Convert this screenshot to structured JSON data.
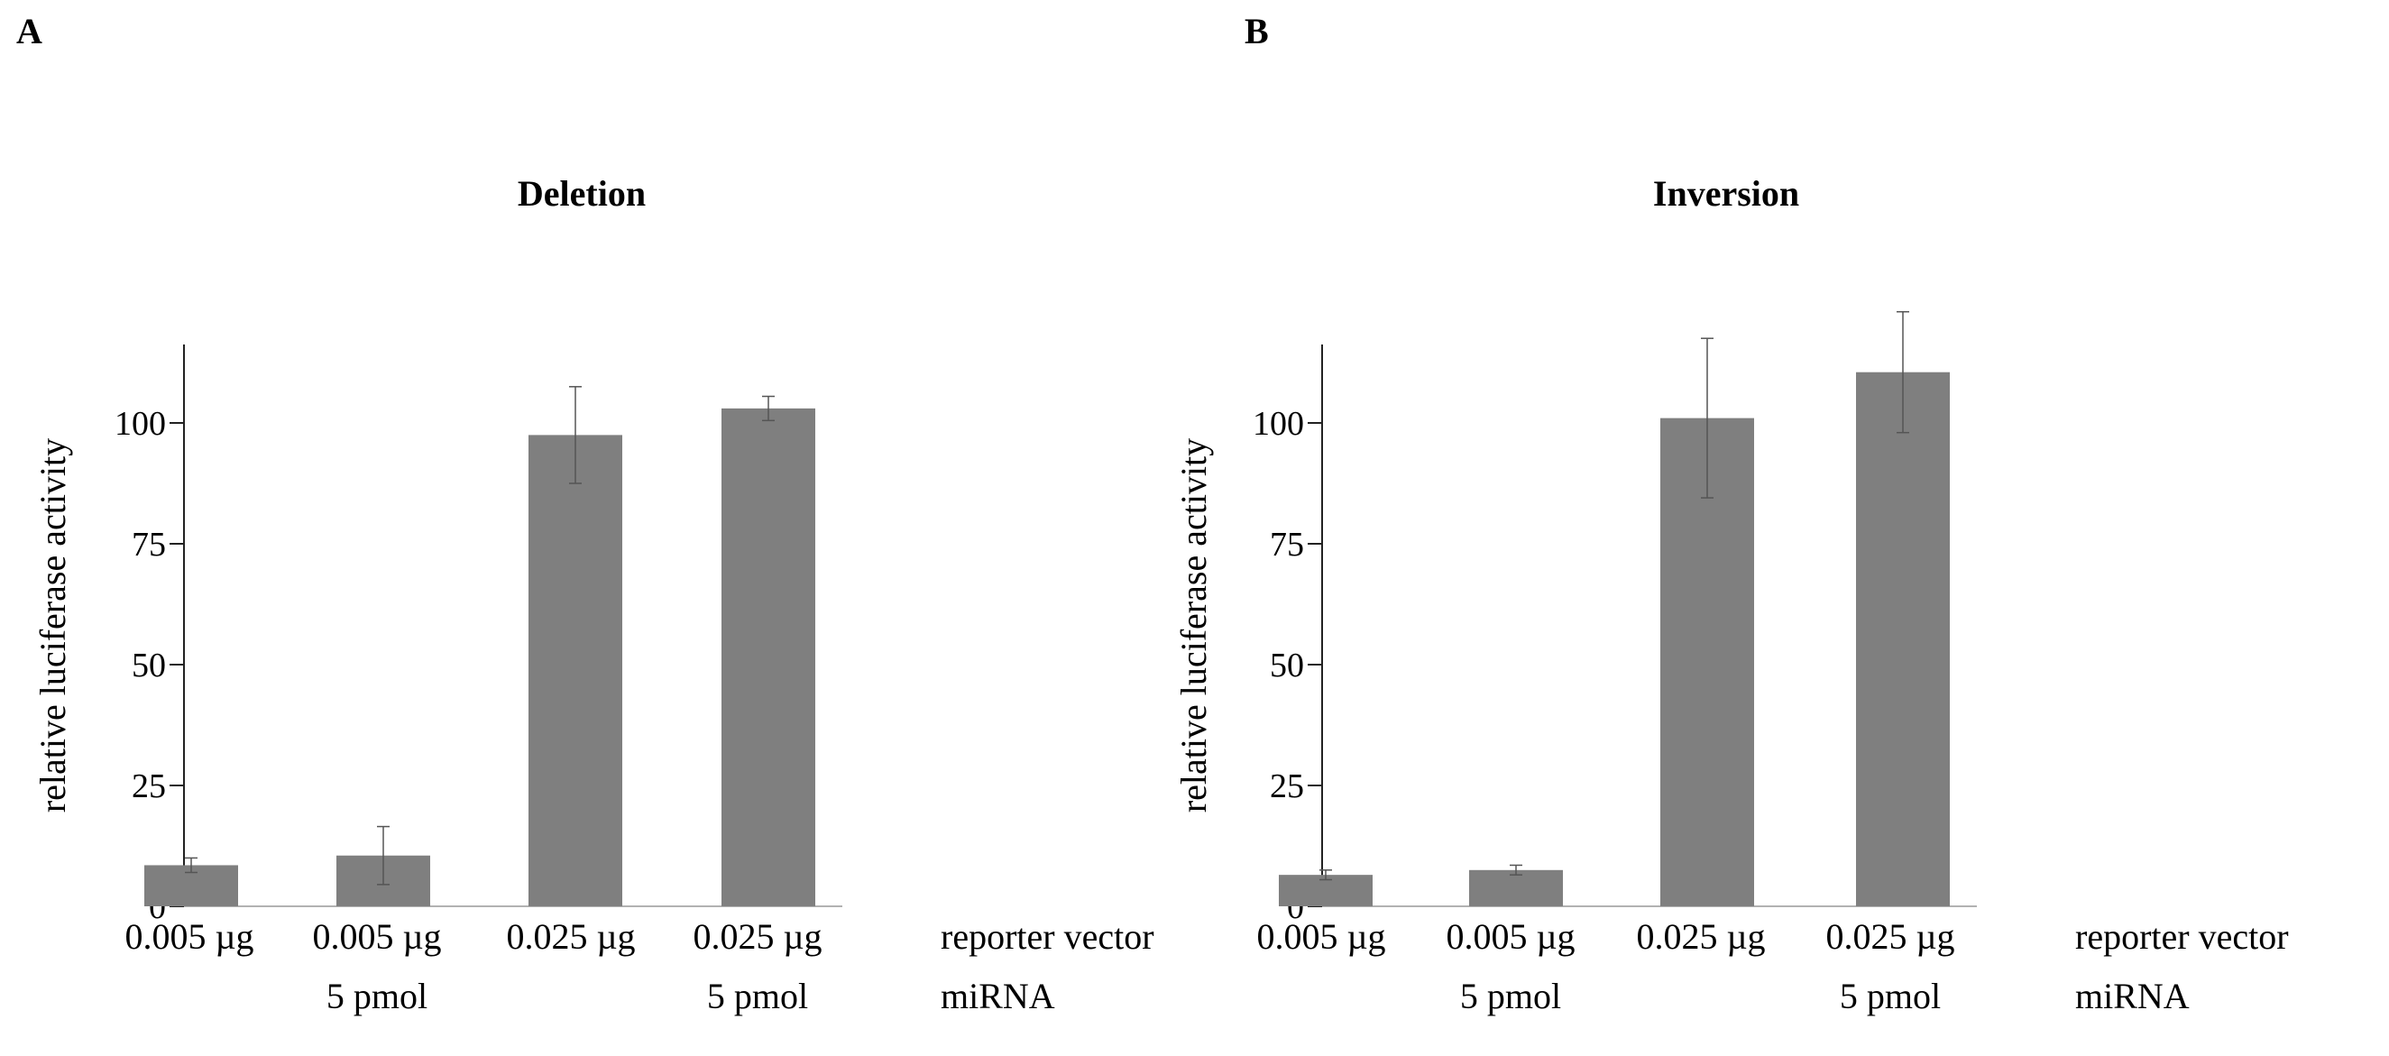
{
  "chart_data": [
    {
      "panel": "A",
      "type": "bar",
      "title": "Deletion",
      "ylabel": "relative luciferase activity",
      "ylim": [
        0,
        116
      ],
      "yticks": [
        0,
        25,
        50,
        75,
        100
      ],
      "categories": [
        "0.005 µg",
        "0.005 µg",
        "0.025 µg",
        "0.025 µg"
      ],
      "values": [
        8.5,
        10.5,
        97.5,
        103
      ],
      "errors": [
        1.5,
        6,
        10,
        2.5
      ],
      "row_labels": [
        "reporter vector",
        "miRNA"
      ],
      "mirna_labels": [
        "",
        "5 pmol",
        "",
        "5 pmol"
      ],
      "bar_color": "#7f7f7f"
    },
    {
      "panel": "B",
      "type": "bar",
      "title": "Inversion",
      "ylabel": "relative luciferase activity",
      "ylim": [
        0,
        116
      ],
      "yticks": [
        0,
        25,
        50,
        75,
        100
      ],
      "categories": [
        "0.005 µg",
        "0.005 µg",
        "0.025 µg",
        "0.025 µg"
      ],
      "values": [
        6.5,
        7.5,
        101,
        110.5
      ],
      "errors": [
        1,
        1,
        16.5,
        12.5
      ],
      "row_labels": [
        "reporter vector",
        "miRNA"
      ],
      "mirna_labels": [
        "",
        "5 pmol",
        "",
        "5 pmol"
      ],
      "bar_color": "#7f7f7f"
    }
  ]
}
